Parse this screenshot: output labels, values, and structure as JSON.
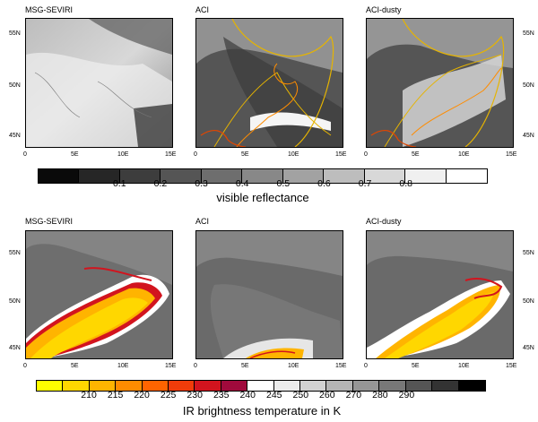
{
  "top_row": {
    "panels": [
      {
        "title": "MSG-SEVIRI",
        "lat_ticks_left": [
          "55N",
          "50N",
          "45N"
        ],
        "lat_ticks_right": [],
        "lon_ticks": [
          "0",
          "5E",
          "10E",
          "15E"
        ]
      },
      {
        "title": "ACI",
        "lat_ticks_left": [],
        "lat_ticks_right": [],
        "lon_ticks": [
          "0",
          "5E",
          "10E",
          "15E"
        ]
      },
      {
        "title": "ACI-dusty",
        "lat_ticks_left": [],
        "lat_ticks_right": [
          "55N",
          "50N",
          "45N"
        ],
        "lon_ticks": [
          "0",
          "5E",
          "10E",
          "15E"
        ]
      }
    ],
    "colorbar": {
      "title": "visible reflectance",
      "labels": [
        "0.1",
        "0.2",
        "0.3",
        "0.4",
        "0.5",
        "0.6",
        "0.7",
        "0.8"
      ],
      "colors": [
        "#0a0a0a",
        "#262626",
        "#3d3d3d",
        "#555555",
        "#6e6e6e",
        "#888888",
        "#a2a2a2",
        "#bdbdbd",
        "#d8d8d8",
        "#f0f0f0",
        "#ffffff"
      ]
    }
  },
  "bottom_row": {
    "panels": [
      {
        "title": "MSG-SEVIRI",
        "lat_ticks_left": [
          "55N",
          "50N",
          "45N"
        ],
        "lat_ticks_right": [],
        "lon_ticks": [
          "0",
          "5E",
          "10E",
          "15E"
        ]
      },
      {
        "title": "ACI",
        "lat_ticks_left": [],
        "lat_ticks_right": [],
        "lon_ticks": [
          "0",
          "5E",
          "10E",
          "15E"
        ]
      },
      {
        "title": "ACI-dusty",
        "lat_ticks_left": [],
        "lat_ticks_right": [
          "55N",
          "50N",
          "45N"
        ],
        "lon_ticks": [
          "0",
          "5E",
          "10E",
          "15E"
        ]
      }
    ],
    "colorbar": {
      "title": "IR brightness temperature in K",
      "labels": [
        "210",
        "215",
        "220",
        "225",
        "230",
        "235",
        "240",
        "245",
        "250",
        "260",
        "270",
        "280",
        "290"
      ],
      "colors": [
        "#ffff00",
        "#ffd700",
        "#ffb400",
        "#ff8c00",
        "#ff6400",
        "#f03c0a",
        "#d2141e",
        "#a00a3c",
        "#ffffff",
        "#ececec",
        "#d2d2d2",
        "#b4b4b4",
        "#969696",
        "#787878",
        "#555555",
        "#333333",
        "#000000"
      ]
    }
  }
}
